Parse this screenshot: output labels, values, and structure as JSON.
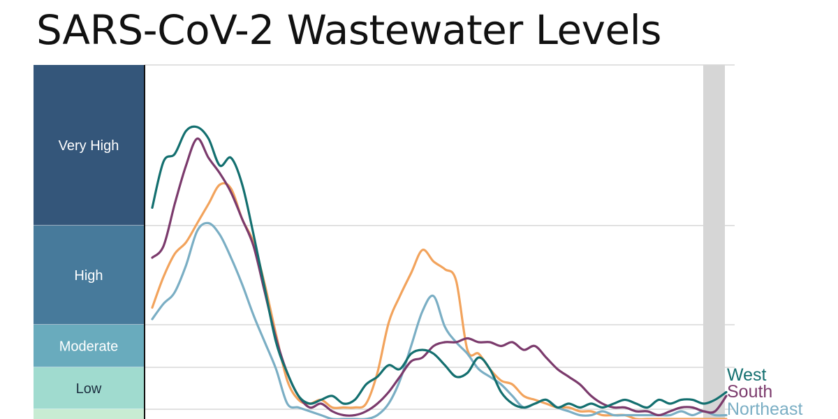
{
  "title": "SARS-CoV-2 Wastewater Levels",
  "colors": {
    "grid": "#cfcfcf",
    "axis": "#111111",
    "shade": "#d6d6d6"
  },
  "chart_data": {
    "type": "line",
    "title": "SARS-CoV-2 Wastewater Levels",
    "xlabel": "",
    "ylabel": "",
    "grid": true,
    "legend": "right-end labels",
    "levels": [
      {
        "name": "Very High",
        "color": "#34567a",
        "text": "light"
      },
      {
        "name": "High",
        "color": "#477a9b",
        "text": "light"
      },
      {
        "name": "Moderate",
        "color": "#69abbd",
        "text": "light"
      },
      {
        "name": "Low",
        "color": "#a0dbcf",
        "text": "dark"
      },
      {
        "name": "",
        "color": "#c8ecd3",
        "text": "dark"
      }
    ],
    "series": [
      {
        "name": "West",
        "color": "#136f6f",
        "values": [
          5.5,
          6.7,
          6.9,
          7.5,
          7.6,
          7.3,
          6.6,
          6.8,
          6.1,
          4.8,
          3.4,
          2.0,
          1.2,
          0.6,
          0.4,
          0.5,
          0.6,
          0.4,
          0.5,
          0.9,
          1.1,
          1.4,
          1.3,
          1.7,
          1.8,
          1.7,
          1.4,
          1.1,
          1.2,
          1.6,
          1.3,
          0.7,
          0.4,
          0.3,
          0.4,
          0.5,
          0.3,
          0.4,
          0.3,
          0.4,
          0.3,
          0.4,
          0.5,
          0.4,
          0.3,
          0.5,
          0.4,
          0.5,
          0.5,
          0.4,
          0.5,
          0.7
        ]
      },
      {
        "name": "South",
        "color": "#7b3a6c",
        "values": [
          4.2,
          4.5,
          5.6,
          6.6,
          7.3,
          6.8,
          6.4,
          5.9,
          5.2,
          4.5,
          3.3,
          2.1,
          1.2,
          0.6,
          0.3,
          0.4,
          0.2,
          0.1,
          0.1,
          0.2,
          0.4,
          0.7,
          1.1,
          1.5,
          1.6,
          1.9,
          2.0,
          2.0,
          2.1,
          2.0,
          2.0,
          1.9,
          2.0,
          1.8,
          1.9,
          1.6,
          1.3,
          1.1,
          0.9,
          0.6,
          0.4,
          0.3,
          0.3,
          0.2,
          0.2,
          0.1,
          0.2,
          0.3,
          0.3,
          0.2,
          0.2,
          0.6
        ]
      },
      {
        "name": "Northeast",
        "color": "#7aaec4",
        "values": [
          2.6,
          3.0,
          3.3,
          4.0,
          4.9,
          5.1,
          4.8,
          4.2,
          3.5,
          2.7,
          2.0,
          1.3,
          0.4,
          0.3,
          0.2,
          0.1,
          0.0,
          0.0,
          0.0,
          0.0,
          0.1,
          0.4,
          1.0,
          1.9,
          2.8,
          3.2,
          2.4,
          2.0,
          1.7,
          1.3,
          1.1,
          0.9,
          0.6,
          0.3,
          0.4,
          0.5,
          0.3,
          0.2,
          0.1,
          0.1,
          0.2,
          0.1,
          0.1,
          0.1,
          0.1,
          0.1,
          0.1,
          0.2,
          0.1,
          0.2,
          0.1,
          0.1
        ]
      },
      {
        "name": "",
        "color": "#f2a35c",
        "values": [
          2.9,
          3.7,
          4.3,
          4.6,
          5.1,
          5.6,
          6.1,
          6.0,
          5.2,
          4.6,
          3.5,
          2.2,
          1.0,
          0.5,
          0.4,
          0.5,
          0.3,
          0.3,
          0.3,
          0.4,
          1.2,
          2.5,
          3.2,
          3.8,
          4.4,
          4.1,
          3.9,
          3.6,
          1.8,
          1.7,
          1.3,
          1.0,
          0.9,
          0.6,
          0.5,
          0.4,
          0.3,
          0.3,
          0.2,
          0.2,
          0.1,
          0.1,
          0.1,
          0.0,
          0.0,
          0.0,
          0.0,
          0.0,
          0.0,
          0.0,
          0.0,
          0.0
        ]
      }
    ]
  }
}
